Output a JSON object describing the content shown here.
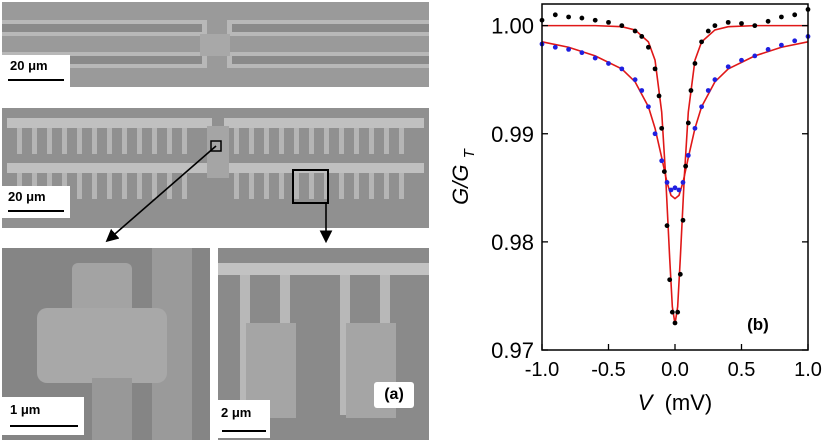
{
  "figure": {
    "panel_a_label": "(a)",
    "panel_b_label": "(b)",
    "scalebars": {
      "top": "20 μm",
      "middle": "20 μm",
      "bottom_left": "1 μm",
      "bottom_right": "2 μm"
    }
  },
  "chart_data": {
    "type": "scatter",
    "xlabel_var": "V",
    "xlabel_unit": "(mV)",
    "ylabel_var": "G/G",
    "ylabel_sub": "T",
    "xlim": [
      -1.0,
      1.0
    ],
    "ylim": [
      0.97,
      1.002
    ],
    "xticks": [
      -1.0,
      -0.5,
      0.0,
      0.5,
      1.0
    ],
    "xtick_labels": [
      "-1.0",
      "-0.5",
      "0.0",
      "0.5",
      "1.0"
    ],
    "yticks": [
      0.97,
      0.98,
      0.99,
      1.0
    ],
    "ytick_labels": [
      "0.97",
      "0.98",
      "0.99",
      "1.00"
    ],
    "grid": false,
    "series": [
      {
        "color": "#000000",
        "marker": "dot",
        "x": [
          -1.0,
          -0.9,
          -0.8,
          -0.7,
          -0.6,
          -0.5,
          -0.4,
          -0.3,
          -0.25,
          -0.2,
          -0.15,
          -0.12,
          -0.1,
          -0.08,
          -0.06,
          -0.04,
          -0.02,
          0.0,
          0.02,
          0.04,
          0.06,
          0.08,
          0.1,
          0.12,
          0.15,
          0.2,
          0.25,
          0.3,
          0.4,
          0.5,
          0.6,
          0.7,
          0.8,
          0.9,
          1.0
        ],
        "y": [
          1.0005,
          1.001,
          1.0008,
          1.0007,
          1.0005,
          1.0003,
          1.0,
          0.9995,
          0.999,
          0.998,
          0.996,
          0.9935,
          0.9905,
          0.9865,
          0.9815,
          0.9765,
          0.9735,
          0.9725,
          0.9735,
          0.977,
          0.982,
          0.987,
          0.991,
          0.994,
          0.9965,
          0.9985,
          0.9995,
          1.0,
          1.0003,
          1.0002,
          1.0,
          1.0004,
          1.0008,
          1.001,
          1.0015
        ]
      },
      {
        "color": "#1f1fe0",
        "marker": "dot",
        "x": [
          -1.0,
          -0.9,
          -0.8,
          -0.7,
          -0.6,
          -0.5,
          -0.4,
          -0.3,
          -0.25,
          -0.2,
          -0.15,
          -0.1,
          -0.06,
          -0.03,
          0.0,
          0.03,
          0.06,
          0.1,
          0.15,
          0.2,
          0.25,
          0.3,
          0.4,
          0.5,
          0.6,
          0.7,
          0.8,
          0.9,
          1.0
        ],
        "y": [
          0.9983,
          0.998,
          0.9978,
          0.9975,
          0.997,
          0.9965,
          0.996,
          0.995,
          0.994,
          0.9925,
          0.99,
          0.9875,
          0.9855,
          0.9848,
          0.985,
          0.9848,
          0.9855,
          0.988,
          0.9905,
          0.9925,
          0.994,
          0.995,
          0.9962,
          0.9968,
          0.9972,
          0.9978,
          0.9982,
          0.9986,
          0.999
        ]
      }
    ],
    "fits": [
      {
        "color": "#e01818",
        "x": [
          -1.0,
          -0.8,
          -0.6,
          -0.4,
          -0.3,
          -0.2,
          -0.15,
          -0.1,
          -0.07,
          -0.04,
          -0.02,
          0.0,
          0.02,
          0.04,
          0.07,
          0.1,
          0.15,
          0.2,
          0.3,
          0.4,
          0.6,
          0.8,
          1.0
        ],
        "y": [
          1.0,
          1.0,
          1.0,
          0.9999,
          0.9996,
          0.9985,
          0.9968,
          0.992,
          0.986,
          0.9785,
          0.974,
          0.9724,
          0.974,
          0.9785,
          0.986,
          0.992,
          0.9968,
          0.9985,
          0.9996,
          0.9999,
          1.0,
          1.0,
          1.0
        ]
      },
      {
        "color": "#e01818",
        "x": [
          -1.0,
          -0.8,
          -0.6,
          -0.4,
          -0.3,
          -0.2,
          -0.15,
          -0.1,
          -0.06,
          -0.03,
          0.0,
          0.03,
          0.06,
          0.1,
          0.15,
          0.2,
          0.3,
          0.4,
          0.6,
          0.8,
          1.0
        ],
        "y": [
          0.9985,
          0.998,
          0.9972,
          0.996,
          0.9948,
          0.9925,
          0.9905,
          0.9878,
          0.9855,
          0.9843,
          0.984,
          0.9843,
          0.9855,
          0.9878,
          0.9905,
          0.9925,
          0.9948,
          0.996,
          0.9972,
          0.998,
          0.9985
        ]
      }
    ]
  }
}
